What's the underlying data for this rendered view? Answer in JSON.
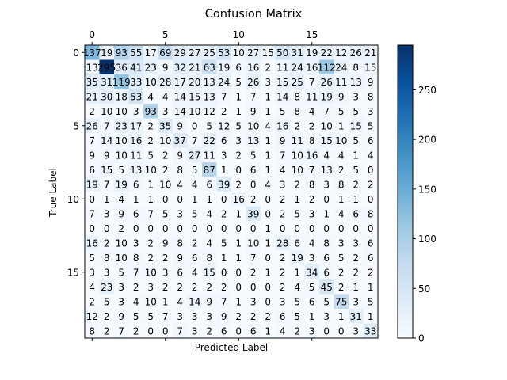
{
  "chart_data": {
    "type": "heatmap",
    "title": "Confusion Matrix",
    "xlabel": "Predicted Label",
    "ylabel": "True Label",
    "x_ticks": [
      0,
      5,
      10,
      15
    ],
    "y_ticks": [
      0,
      5,
      10,
      15
    ],
    "colorbar_ticks": [
      0,
      50,
      100,
      150,
      200,
      250
    ],
    "colorbar_range": [
      0,
      295
    ],
    "colormap": [
      "#f7fbff",
      "#deebf7",
      "#c6dbef",
      "#9ecae1",
      "#6baed6",
      "#4292c6",
      "#2171b5",
      "#08519c",
      "#08306b"
    ],
    "matrix": [
      [
        137,
        19,
        93,
        55,
        17,
        69,
        29,
        27,
        25,
        53,
        10,
        27,
        15,
        50,
        31,
        19,
        22,
        12,
        26,
        21
      ],
      [
        13,
        295,
        36,
        41,
        23,
        9,
        32,
        21,
        63,
        19,
        6,
        16,
        2,
        11,
        24,
        16,
        112,
        24,
        8,
        15
      ],
      [
        35,
        31,
        119,
        33,
        10,
        28,
        17,
        20,
        13,
        24,
        5,
        26,
        3,
        15,
        25,
        7,
        26,
        11,
        13,
        9
      ],
      [
        21,
        30,
        18,
        53,
        4,
        4,
        14,
        15,
        13,
        7,
        1,
        7,
        1,
        14,
        8,
        11,
        19,
        9,
        3,
        8
      ],
      [
        2,
        10,
        10,
        3,
        93,
        3,
        14,
        10,
        12,
        2,
        1,
        9,
        1,
        5,
        8,
        4,
        7,
        5,
        5,
        3
      ],
      [
        26,
        7,
        23,
        17,
        2,
        35,
        9,
        0,
        5,
        12,
        5,
        10,
        4,
        16,
        2,
        2,
        10,
        1,
        15,
        5
      ],
      [
        7,
        14,
        10,
        16,
        2,
        10,
        37,
        7,
        22,
        6,
        3,
        13,
        1,
        9,
        11,
        8,
        15,
        10,
        5,
        6
      ],
      [
        9,
        9,
        10,
        11,
        5,
        2,
        9,
        27,
        11,
        3,
        2,
        5,
        1,
        7,
        10,
        16,
        4,
        4,
        1,
        4
      ],
      [
        6,
        15,
        5,
        13,
        10,
        2,
        8,
        5,
        87,
        1,
        0,
        6,
        1,
        4,
        10,
        7,
        13,
        2,
        5,
        0
      ],
      [
        19,
        7,
        19,
        6,
        1,
        10,
        4,
        4,
        6,
        39,
        2,
        0,
        4,
        3,
        2,
        8,
        3,
        8,
        2,
        2
      ],
      [
        0,
        1,
        4,
        1,
        1,
        0,
        0,
        1,
        1,
        0,
        16,
        2,
        0,
        2,
        1,
        2,
        0,
        1,
        1,
        0
      ],
      [
        7,
        3,
        9,
        6,
        7,
        5,
        3,
        5,
        4,
        2,
        1,
        39,
        0,
        2,
        5,
        3,
        1,
        4,
        6,
        8
      ],
      [
        0,
        0,
        2,
        0,
        0,
        0,
        0,
        0,
        0,
        0,
        0,
        0,
        1,
        0,
        0,
        0,
        0,
        0,
        0,
        0
      ],
      [
        16,
        2,
        10,
        3,
        2,
        9,
        8,
        2,
        4,
        5,
        1,
        10,
        1,
        28,
        6,
        4,
        8,
        3,
        3,
        6
      ],
      [
        5,
        8,
        10,
        8,
        2,
        2,
        9,
        6,
        8,
        1,
        1,
        7,
        0,
        2,
        19,
        3,
        6,
        5,
        2,
        6
      ],
      [
        3,
        3,
        5,
        7,
        10,
        3,
        6,
        4,
        15,
        0,
        0,
        2,
        1,
        2,
        1,
        34,
        6,
        2,
        2,
        2
      ],
      [
        4,
        23,
        3,
        2,
        3,
        2,
        2,
        2,
        2,
        2,
        0,
        0,
        0,
        2,
        4,
        5,
        45,
        2,
        1,
        1
      ],
      [
        2,
        5,
        3,
        4,
        10,
        1,
        4,
        14,
        9,
        7,
        1,
        3,
        0,
        3,
        5,
        6,
        5,
        75,
        3,
        5
      ],
      [
        12,
        2,
        9,
        5,
        5,
        7,
        3,
        3,
        3,
        9,
        2,
        2,
        2,
        6,
        5,
        1,
        3,
        1,
        31,
        1
      ],
      [
        8,
        2,
        7,
        2,
        0,
        0,
        7,
        3,
        2,
        6,
        0,
        6,
        1,
        4,
        2,
        3,
        0,
        0,
        3,
        33
      ]
    ]
  }
}
